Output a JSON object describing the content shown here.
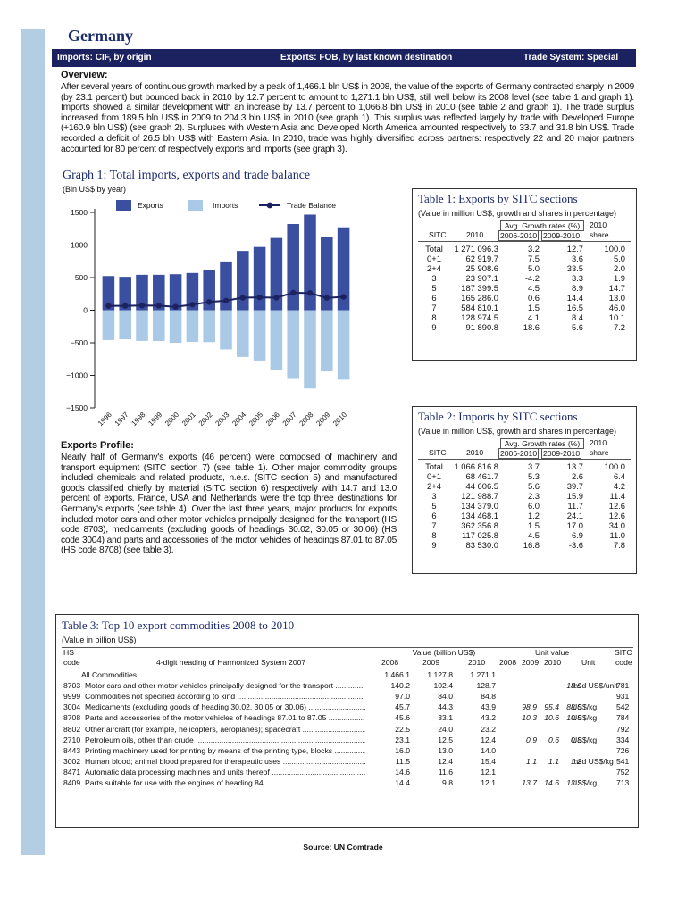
{
  "country": "Germany",
  "header": {
    "imports": "Imports: CIF, by origin",
    "exports": "Exports: FOB, by last known destination",
    "trade_system": "Trade System: Special"
  },
  "overview": {
    "title": "Overview:",
    "text": "After several years of continuous growth marked by a peak of 1,466.1 bln US$ in 2008, the value of the exports of Germany contracted sharply in 2009 (by 23.1 percent) but bounced back in 2010 by 12.7 percent to amount to 1,271.1 bln US$, still well below its 2008 level (see table 1 and graph 1). Imports showed a similar development with an increase by 13.7 percent to 1,066.8 bln US$ in 2010 (see table 2 and graph 1). The trade surplus increased from 189.5 bln US$ in 2009 to 204.3 bln US$ in 2010 (see graph 1). This surplus was reflected largely by trade with Developed Europe (+160.9 bln US$) (see graph 2). Surpluses with Western Asia and Developed North America amounted respectively to 33.7 and 31.8 bln US$. Trade recorded a deficit of 26.5 bln US$ with Eastern Asia. In 2010, trade was highly diversified across partners: respectively 22 and 20 major partners accounted for 80 percent of respectively exports and imports (see graph 3)."
  },
  "graph1": {
    "title": "Graph 1: Total imports, exports and trade balance",
    "unit": "(Bln US$ by year)",
    "legend": [
      "Exports",
      "Imports",
      "Trade Balance"
    ],
    "y_ticks": [
      "1500",
      "1000",
      "500",
      "0",
      "−500",
      "−1000",
      "−1500"
    ]
  },
  "chart_data": {
    "type": "bar",
    "title": "Graph 1: Total imports, exports and trade balance",
    "ylabel": "Bln US$ by year",
    "ylim": [
      -1500,
      1500
    ],
    "legend_position": "top",
    "colors": {
      "exports": "#3a4fa0",
      "imports": "#aac9e6",
      "balance": "#1c2260"
    },
    "categories": [
      "1996",
      "1997",
      "1998",
      "1999",
      "2000",
      "2001",
      "2002",
      "2003",
      "2004",
      "2005",
      "2006",
      "2007",
      "2008",
      "2009",
      "2010"
    ],
    "series": [
      {
        "name": "Exports",
        "values": [
          524,
          512,
          543,
          543,
          552,
          571,
          616,
          748,
          909,
          970,
          1108,
          1322,
          1466,
          1128,
          1271
        ]
      },
      {
        "name": "Imports",
        "values": [
          -458,
          -445,
          -471,
          -473,
          -500,
          -486,
          -490,
          -602,
          -718,
          -773,
          -916,
          -1055,
          -1202,
          -939,
          -1067
        ]
      },
      {
        "name": "Trade Balance",
        "values": [
          66,
          67,
          72,
          70,
          52,
          85,
          126,
          146,
          191,
          197,
          192,
          267,
          264,
          189,
          204
        ]
      }
    ]
  },
  "table1": {
    "title": "Table 1: Exports by SITC sections",
    "sub": "(Value in million US$, growth and shares in percentage)",
    "head": {
      "avg": "Avg. Growth rates (%)",
      "share_top": "2010",
      "sitc": "SITC",
      "year": "2010",
      "p1": "2006-2010",
      "p2": "2009-2010",
      "share": "share"
    },
    "rows": [
      [
        "Total",
        "1 271 096.3",
        "3.2",
        "12.7",
        "100.0"
      ],
      [
        "0+1",
        "62 919.7",
        "7.5",
        "3.6",
        "5.0"
      ],
      [
        "2+4",
        "25 908.6",
        "5.0",
        "33.5",
        "2.0"
      ],
      [
        "3",
        "23 907.1",
        "-4.2",
        "3.3",
        "1.9"
      ],
      [
        "5",
        "187 399.5",
        "4.5",
        "8.9",
        "14.7"
      ],
      [
        "6",
        "165 286.0",
        "0.6",
        "14.4",
        "13.0"
      ],
      [
        "7",
        "584 810.1",
        "1.5",
        "16.5",
        "46.0"
      ],
      [
        "8",
        "128 974.5",
        "4.1",
        "8.4",
        "10.1"
      ],
      [
        "9",
        "91 890.8",
        "18.6",
        "5.6",
        "7.2"
      ]
    ]
  },
  "table2": {
    "title": "Table 2: Imports by SITC sections",
    "sub": "(Value in million US$, growth and shares in percentage)",
    "head": {
      "avg": "Avg. Growth rates (%)",
      "share_top": "2010",
      "sitc": "SITC",
      "year": "2010",
      "p1": "2006-2010",
      "p2": "2009-2010",
      "share": "share"
    },
    "rows": [
      [
        "Total",
        "1 066 816.8",
        "3.7",
        "13.7",
        "100.0"
      ],
      [
        "0+1",
        "68 461.7",
        "5.3",
        "2.6",
        "6.4"
      ],
      [
        "2+4",
        "44 606.5",
        "5.6",
        "39.7",
        "4.2"
      ],
      [
        "3",
        "121 988.7",
        "2.3",
        "15.9",
        "11.4"
      ],
      [
        "5",
        "134 379.0",
        "6.0",
        "11.7",
        "12.6"
      ],
      [
        "6",
        "134 468.1",
        "1.2",
        "24.1",
        "12.6"
      ],
      [
        "7",
        "362 356.8",
        "1.5",
        "17.0",
        "34.0"
      ],
      [
        "8",
        "117 025.8",
        "4.5",
        "6.9",
        "11.0"
      ],
      [
        "9",
        "83 530.0",
        "16.8",
        "-3.6",
        "7.8"
      ]
    ]
  },
  "export_profile": {
    "title": "Exports Profile:",
    "text": "Nearly half of Germany's exports (46 percent) were composed of machinery and transport equipment (SITC section 7) (see table 1). Other major commodity groups included chemicals and related products, n.e.s. (SITC section 5) and manufactured goods classified chiefly by material (SITC section 6) respectively with 14.7 and 13.0 percent of exports. France, USA and Netherlands were the top three destinations for Germany's exports (see table 4). Over the last three years, major products for exports included motor cars and other motor vehicles principally designed for the transport (HS code 8703), medicaments (excluding goods of headings 30.02, 30.05 or 30.06) (HS code 3004) and parts and accessories of the motor vehicles of headings 87.01 to 87.05 (HS code 8708) (see table 3)."
  },
  "table3": {
    "title": "Table 3: Top 10 export commodities 2008 to 2010",
    "sub": "(Value in billion US$)",
    "head": {
      "hs": "HS",
      "code": "code",
      "heading": "4-digit heading of Harmonized System 2007",
      "value": "Value (billion US$)",
      "unit_value": "Unit value",
      "sitc": "SITC",
      "sitc_code": "code",
      "y2008": "2008",
      "y2009": "2009",
      "y2010": "2010",
      "unit": "Unit"
    },
    "rows": [
      {
        "code": "",
        "desc": "All Commodities",
        "v08": "1 466.1",
        "v09": "1 127.8",
        "v10": "1 271.1",
        "u08": "",
        "u09": "",
        "u10": "",
        "unit": "",
        "sitc": ""
      },
      {
        "code": "8703",
        "desc": "Motor cars and other motor vehicles principally designed for the transport",
        "v08": "140.2",
        "v09": "102.4",
        "v10": "128.7",
        "u08": "",
        "u09": "",
        "u10": "18.9",
        "unit": "thsd US$/unit",
        "sitc": "781"
      },
      {
        "code": "9999",
        "desc": "Commodities not specified according to kind",
        "v08": "97.0",
        "v09": "84.0",
        "v10": "84.8",
        "u08": "",
        "u09": "",
        "u10": "",
        "unit": "",
        "sitc": "931"
      },
      {
        "code": "3004",
        "desc": "Medicaments (excluding goods of heading 30.02, 30.05 or 30.06)",
        "v08": "45.7",
        "v09": "44.3",
        "v10": "43.9",
        "u08": "98.9",
        "u09": "95.4",
        "u10": "88.0",
        "unit": "US$/kg",
        "sitc": "542"
      },
      {
        "code": "8708",
        "desc": "Parts and accessories of the motor vehicles of headings 87.01 to 87.05",
        "v08": "45.6",
        "v09": "33.1",
        "v10": "43.2",
        "u08": "10.3",
        "u09": "10.6",
        "u10": "10.0",
        "unit": "US$/kg",
        "sitc": "784"
      },
      {
        "code": "8802",
        "desc": "Other aircraft (for example, helicopters, aeroplanes); spacecraft",
        "v08": "22.5",
        "v09": "24.0",
        "v10": "23.2",
        "u08": "",
        "u09": "",
        "u10": "",
        "unit": "",
        "sitc": "792"
      },
      {
        "code": "2710",
        "desc": "Petroleum oils, other than crude",
        "v08": "23.1",
        "v09": "12.5",
        "v10": "12.4",
        "u08": "0.9",
        "u09": "0.6",
        "u10": "0.8",
        "unit": "US$/kg",
        "sitc": "334"
      },
      {
        "code": "8443",
        "desc": "Printing machinery used for printing by means of the printing type, blocks",
        "v08": "16.0",
        "v09": "13.0",
        "v10": "14.0",
        "u08": "",
        "u09": "",
        "u10": "",
        "unit": "",
        "sitc": "726"
      },
      {
        "code": "3002",
        "desc": "Human blood; animal blood prepared for therapeutic uses",
        "v08": "11.5",
        "v09": "12.4",
        "v10": "15.4",
        "u08": "1.1",
        "u09": "1.1",
        "u10": "1.2",
        "unit": "thsd US$/kg",
        "sitc": "541"
      },
      {
        "code": "8471",
        "desc": "Automatic data processing machines and units thereof",
        "v08": "14.6",
        "v09": "11.6",
        "v10": "12.1",
        "u08": "",
        "u09": "",
        "u10": "",
        "unit": "",
        "sitc": "752"
      },
      {
        "code": "8409",
        "desc": "Parts suitable for use with the engines of heading 84",
        "v08": "14.4",
        "v09": "9.8",
        "v10": "12.1",
        "u08": "13.7",
        "u09": "14.6",
        "u10": "13.2",
        "unit": "US$/kg",
        "sitc": "713"
      }
    ]
  },
  "source": "Source: UN Comtrade"
}
